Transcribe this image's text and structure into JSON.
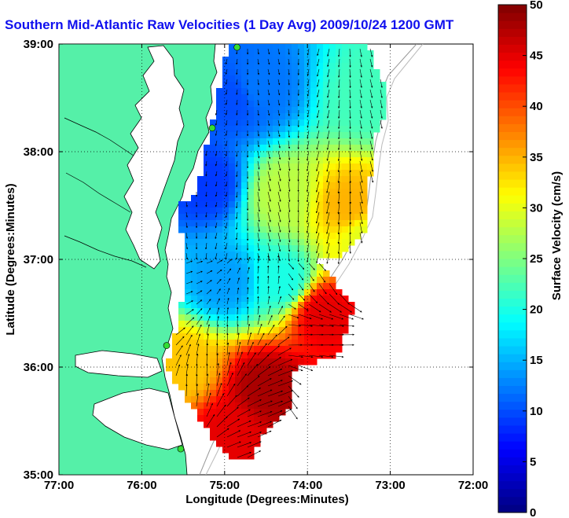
{
  "title": "Southern Mid-Atlantic Raw Velocities (1 Day Avg) 2009/10/24 1200 GMT",
  "colors": {
    "land": "#55f0a8",
    "water": "#ffffff",
    "title": "#1010ee",
    "arrow": "#000000",
    "coast": "#000000",
    "site_marker": "#33dd33"
  },
  "chart_data": {
    "type": "heatmap",
    "title": "Southern Mid-Atlantic Raw Velocities (1 Day Avg) 2009/10/24 1200 GMT",
    "xlabel": "Longitude (Degrees:Minutes)",
    "ylabel": "Latitude (Degrees:Minutes)",
    "xlim": [
      -77,
      -72
    ],
    "ylim": [
      35,
      39
    ],
    "x_ticks": [
      {
        "value": -77,
        "label": "77:00"
      },
      {
        "value": -76,
        "label": "76:00"
      },
      {
        "value": -75,
        "label": "75:00"
      },
      {
        "value": -74,
        "label": "74:00"
      },
      {
        "value": -73,
        "label": "73:00"
      },
      {
        "value": -72,
        "label": "72:00"
      }
    ],
    "y_ticks": [
      {
        "value": 35,
        "label": "35:00"
      },
      {
        "value": 36,
        "label": "36:00"
      },
      {
        "value": 37,
        "label": "37:00"
      },
      {
        "value": 38,
        "label": "38:00"
      },
      {
        "value": 39,
        "label": "39:00"
      }
    ],
    "grid": true,
    "colorbar": {
      "label": "Surface Velocity (cm/s)",
      "min": 0,
      "max": 50,
      "ticks": [
        {
          "value": 0,
          "label": "0"
        },
        {
          "value": 5,
          "label": "5"
        },
        {
          "value": 10,
          "label": "10"
        },
        {
          "value": 15,
          "label": "15"
        },
        {
          "value": 20,
          "label": "20"
        },
        {
          "value": 25,
          "label": "25"
        },
        {
          "value": 30,
          "label": "30"
        },
        {
          "value": 35,
          "label": "35"
        },
        {
          "value": 40,
          "label": "40"
        },
        {
          "value": 45,
          "label": "45"
        },
        {
          "value": 50,
          "label": "50"
        }
      ]
    },
    "field_summary": [
      {
        "lon": -74.9,
        "lat": 38.5,
        "speed": 10
      },
      {
        "lon": -74.6,
        "lat": 38.6,
        "speed": 12
      },
      {
        "lon": -73.3,
        "lat": 38.5,
        "speed": 22
      },
      {
        "lon": -75.2,
        "lat": 37.7,
        "speed": 9
      },
      {
        "lon": -74.3,
        "lat": 37.6,
        "speed": 28
      },
      {
        "lon": -73.5,
        "lat": 37.5,
        "speed": 35
      },
      {
        "lon": -73.3,
        "lat": 37.2,
        "speed": 30
      },
      {
        "lon": -75.0,
        "lat": 36.8,
        "speed": 14
      },
      {
        "lon": -74.3,
        "lat": 36.8,
        "speed": 20
      },
      {
        "lon": -73.8,
        "lat": 36.5,
        "speed": 45
      },
      {
        "lon": -75.5,
        "lat": 36.0,
        "speed": 34
      },
      {
        "lon": -74.5,
        "lat": 35.8,
        "speed": 48
      },
      {
        "lon": -74.9,
        "lat": 35.4,
        "speed": 45
      }
    ],
    "sites": [
      {
        "lon": -74.85,
        "lat": 38.97
      },
      {
        "lon": -75.15,
        "lat": 38.22
      },
      {
        "lon": -75.7,
        "lat": 36.2
      },
      {
        "lon": -75.53,
        "lat": 35.24
      }
    ]
  }
}
